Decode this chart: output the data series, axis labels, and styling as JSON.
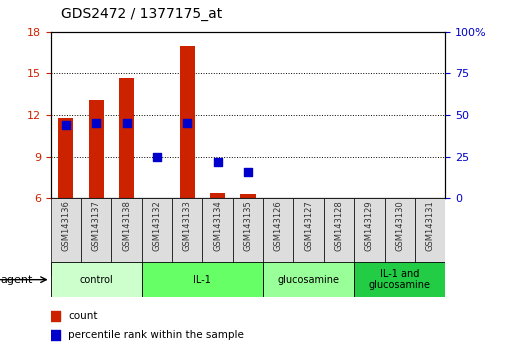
{
  "title": "GDS2472 / 1377175_at",
  "samples": [
    "GSM143136",
    "GSM143137",
    "GSM143138",
    "GSM143132",
    "GSM143133",
    "GSM143134",
    "GSM143135",
    "GSM143126",
    "GSM143127",
    "GSM143128",
    "GSM143129",
    "GSM143130",
    "GSM143131"
  ],
  "count_values": [
    11.8,
    13.1,
    14.7,
    null,
    17.0,
    6.4,
    6.3,
    null,
    null,
    null,
    null,
    null,
    null
  ],
  "percentile_values": [
    44,
    45,
    45,
    25,
    45,
    22,
    16,
    null,
    null,
    null,
    null,
    null,
    null
  ],
  "ylim_left": [
    6,
    18
  ],
  "ylim_right": [
    0,
    100
  ],
  "yticks_left": [
    6,
    9,
    12,
    15,
    18
  ],
  "yticks_right": [
    0,
    25,
    50,
    75,
    100
  ],
  "ytick_labels_right": [
    "0",
    "25",
    "50",
    "75",
    "100%"
  ],
  "groups": [
    {
      "label": "control",
      "start": 0,
      "end": 3,
      "color": "#ccffcc"
    },
    {
      "label": "IL-1",
      "start": 3,
      "end": 7,
      "color": "#66ff66"
    },
    {
      "label": "glucosamine",
      "start": 7,
      "end": 10,
      "color": "#99ff99"
    },
    {
      "label": "IL-1 and\nglucosamine",
      "start": 10,
      "end": 13,
      "color": "#22cc44"
    }
  ],
  "bar_color": "#cc2200",
  "dot_color": "#0000cc",
  "background_color": "#ffffff",
  "tick_label_color_left": "#cc2200",
  "tick_label_color_right": "#0000cc",
  "bar_width": 0.5,
  "dot_size": 28,
  "xtick_bg": "#dddddd",
  "agent_label": "agent"
}
